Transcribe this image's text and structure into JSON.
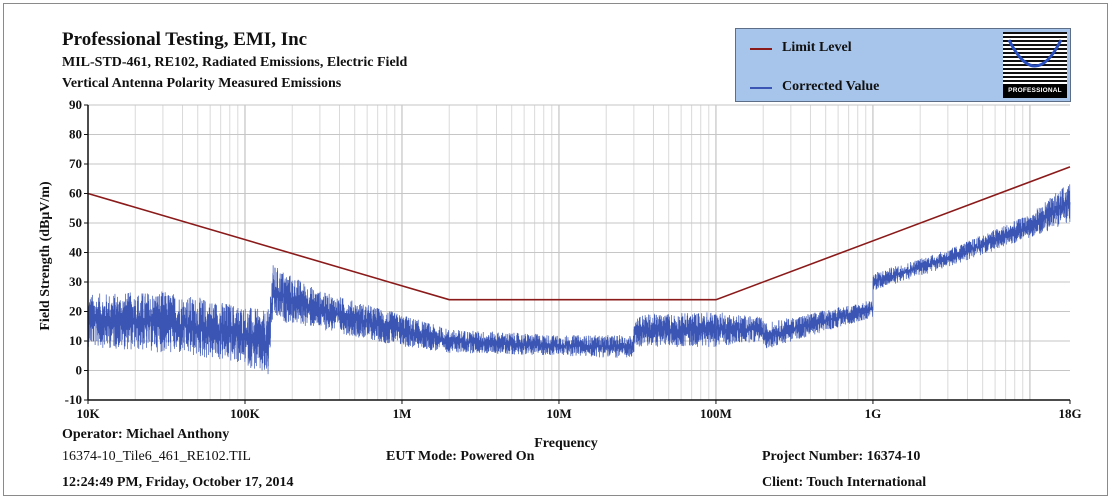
{
  "header": {
    "company": "Professional Testing, EMI, Inc",
    "subtitle1": "MIL-STD-461, RE102, Radiated Emissions, Electric Field",
    "subtitle2": "Vertical Antenna Polarity Measured Emissions"
  },
  "legend": {
    "items": [
      {
        "label": "Limit Level",
        "color": "#8b1a1a"
      },
      {
        "label": "Corrected Value",
        "color": "#3a55b4"
      }
    ],
    "logo_text": "PROFESSIONAL"
  },
  "footer": {
    "operator": "Operator: Michael Anthony",
    "file": "16374-10_Tile6_461_RE102.TIL",
    "eut_mode": "EUT Mode: Powered On",
    "project": "Project Number: 16374-10",
    "timestamp": "12:24:49 PM, Friday, October 17, 2014",
    "client": "Client: Touch International"
  },
  "chart_data": {
    "type": "line",
    "title": "Professional Testing, EMI, Inc",
    "xlabel": "Frequency",
    "ylabel": "Field Strength (dBμV/m)",
    "x_scale": "log",
    "xlim": [
      10000,
      18000000000
    ],
    "ylim": [
      -10,
      90
    ],
    "x_ticks": [
      {
        "value": 10000,
        "label": "10K"
      },
      {
        "value": 100000,
        "label": "100K"
      },
      {
        "value": 1000000,
        "label": "1M"
      },
      {
        "value": 10000000,
        "label": "10M"
      },
      {
        "value": 100000000,
        "label": "100M"
      },
      {
        "value": 1000000000,
        "label": "1G"
      },
      {
        "value": 18000000000,
        "label": "18G"
      }
    ],
    "y_ticks": [
      -10,
      0,
      10,
      20,
      30,
      40,
      50,
      60,
      70,
      80,
      90
    ],
    "grid": true,
    "legend_position": "top-right",
    "series": [
      {
        "name": "Limit Level",
        "color": "#8b1a1a",
        "x": [
          10000,
          2000000,
          100000000,
          18000000000
        ],
        "y": [
          60,
          24,
          24,
          69
        ]
      },
      {
        "name": "Corrected Value",
        "color": "#3a55b4",
        "style": "noisy band (approx. min/max envelope)",
        "x": [
          10000,
          30000,
          100000,
          140000,
          150000,
          300000,
          1000000,
          2000000,
          10000000,
          30000000,
          30000000,
          100000000,
          200000000,
          200000000,
          1000000000,
          1000000000,
          3000000000,
          10000000000,
          18000000000
        ],
        "y_min": [
          8,
          6,
          2,
          -3,
          17,
          14,
          8,
          6,
          5,
          4,
          8,
          8,
          10,
          7,
          18,
          27,
          35,
          45,
          50
        ],
        "y_max": [
          26,
          27,
          22,
          20,
          36,
          27,
          19,
          14,
          12,
          12,
          19,
          20,
          18,
          16,
          24,
          33,
          41,
          53,
          64
        ]
      }
    ]
  }
}
